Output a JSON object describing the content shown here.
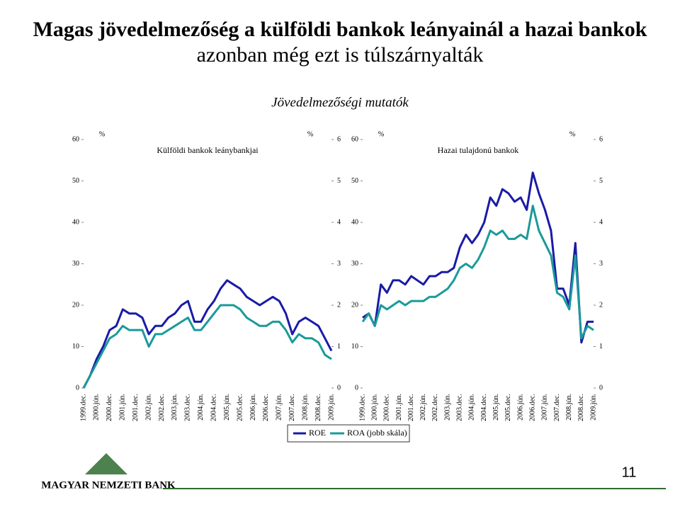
{
  "title_lines": [
    "Magas jövedelmezőség a külföldi bankok leányainál a hazai bankok",
    "azonban még ezt is túlszárnyalták"
  ],
  "subtitle": "Jövedelmezőségi mutatók",
  "page_number": "11",
  "logo_text": "MAGYAR NEMZETI BANK",
  "chart_data": [
    {
      "type": "line",
      "title": "Külföldi bankok leánybankjai",
      "y_label": "%",
      "y2_label": "%",
      "categories": [
        "1999.dec.",
        null,
        "2000.jún.",
        null,
        "2000.dec.",
        null,
        "2001.jún.",
        null,
        "2001.dec.",
        null,
        "2002.jún.",
        null,
        "2002.dec.",
        null,
        "2003.jún.",
        null,
        "2003.dec.",
        null,
        "2004.jún.",
        null,
        "2004.dec.",
        null,
        "2005.jún.",
        null,
        "2005.dec.",
        null,
        "2006.jún.",
        null,
        "2006.dec.",
        null,
        "2007.jún.",
        null,
        "2007.dec.",
        null,
        "2008.jún.",
        null,
        "2008.dec.",
        null,
        "2009.jún."
      ],
      "ylim": [
        0,
        60
      ],
      "yticks": [
        0,
        10,
        20,
        30,
        40,
        50,
        60
      ],
      "y2lim": [
        0,
        6
      ],
      "y2ticks": [
        0,
        1,
        2,
        3,
        4,
        5,
        6
      ],
      "series": [
        {
          "name": "ROE",
          "color": "#1a1aa6",
          "values": [
            0,
            3,
            7,
            10,
            14,
            15,
            19,
            18,
            18,
            17,
            13,
            15,
            15,
            17,
            18,
            20,
            21,
            16,
            16,
            19,
            21,
            24,
            26,
            25,
            24,
            22,
            21,
            20,
            21,
            22,
            21,
            18,
            13,
            16,
            17,
            16,
            15,
            12,
            9
          ]
        },
        {
          "name": "ROA (jobb skála)",
          "color": "#1a9a9a",
          "axis": "y2",
          "values": [
            0,
            0.3,
            0.6,
            0.9,
            1.2,
            1.3,
            1.5,
            1.4,
            1.4,
            1.4,
            1.0,
            1.3,
            1.3,
            1.4,
            1.5,
            1.6,
            1.7,
            1.4,
            1.4,
            1.6,
            1.8,
            2.0,
            2.0,
            2.0,
            1.9,
            1.7,
            1.6,
            1.5,
            1.5,
            1.6,
            1.6,
            1.4,
            1.1,
            1.3,
            1.2,
            1.2,
            1.1,
            0.8,
            0.7
          ]
        }
      ]
    },
    {
      "type": "line",
      "title": "Hazai tulajdonú bankok",
      "y_label": "%",
      "y2_label": "%",
      "categories": [
        "1999.dec.",
        null,
        "2000.jún.",
        null,
        "2000.dec.",
        null,
        "2001.jún.",
        null,
        "2001.dec.",
        null,
        "2002.jún.",
        null,
        "2002.dec.",
        null,
        "2003.jún.",
        null,
        "2003.dec.",
        null,
        "2004.jún.",
        null,
        "2004.dec.",
        null,
        "2005.jún.",
        null,
        "2005.dec.",
        null,
        "2006.jún.",
        null,
        "2006.dec.",
        null,
        "2007.jún.",
        null,
        "2007.dec.",
        null,
        "2008.jún.",
        null,
        "2008.dec.",
        null,
        "2009.jún."
      ],
      "ylim": [
        0,
        60
      ],
      "yticks": [
        0,
        10,
        20,
        30,
        40,
        50,
        60
      ],
      "y2lim": [
        0,
        6
      ],
      "y2ticks": [
        0,
        1,
        2,
        3,
        4,
        5,
        6
      ],
      "series": [
        {
          "color": "#1a1aa6",
          "values": [
            17,
            18,
            15,
            25,
            23,
            26,
            26,
            25,
            27,
            26,
            25,
            27,
            27,
            28,
            28,
            29,
            34,
            37,
            35,
            37,
            40,
            46,
            44,
            48,
            47,
            45,
            46,
            43,
            52,
            47,
            43,
            38,
            24,
            24,
            20,
            35,
            11,
            16,
            16
          ]
        },
        {
          "color": "#1a9a9a",
          "axis": "y2",
          "values": [
            1.6,
            1.8,
            1.5,
            2.0,
            1.9,
            2.0,
            2.1,
            2.0,
            2.1,
            2.1,
            2.1,
            2.2,
            2.2,
            2.3,
            2.4,
            2.6,
            2.9,
            3.0,
            2.9,
            3.1,
            3.4,
            3.8,
            3.7,
            3.8,
            3.6,
            3.6,
            3.7,
            3.6,
            4.4,
            3.8,
            3.5,
            3.2,
            2.3,
            2.2,
            1.9,
            3.2,
            1.2,
            1.5,
            1.4
          ]
        }
      ]
    }
  ]
}
